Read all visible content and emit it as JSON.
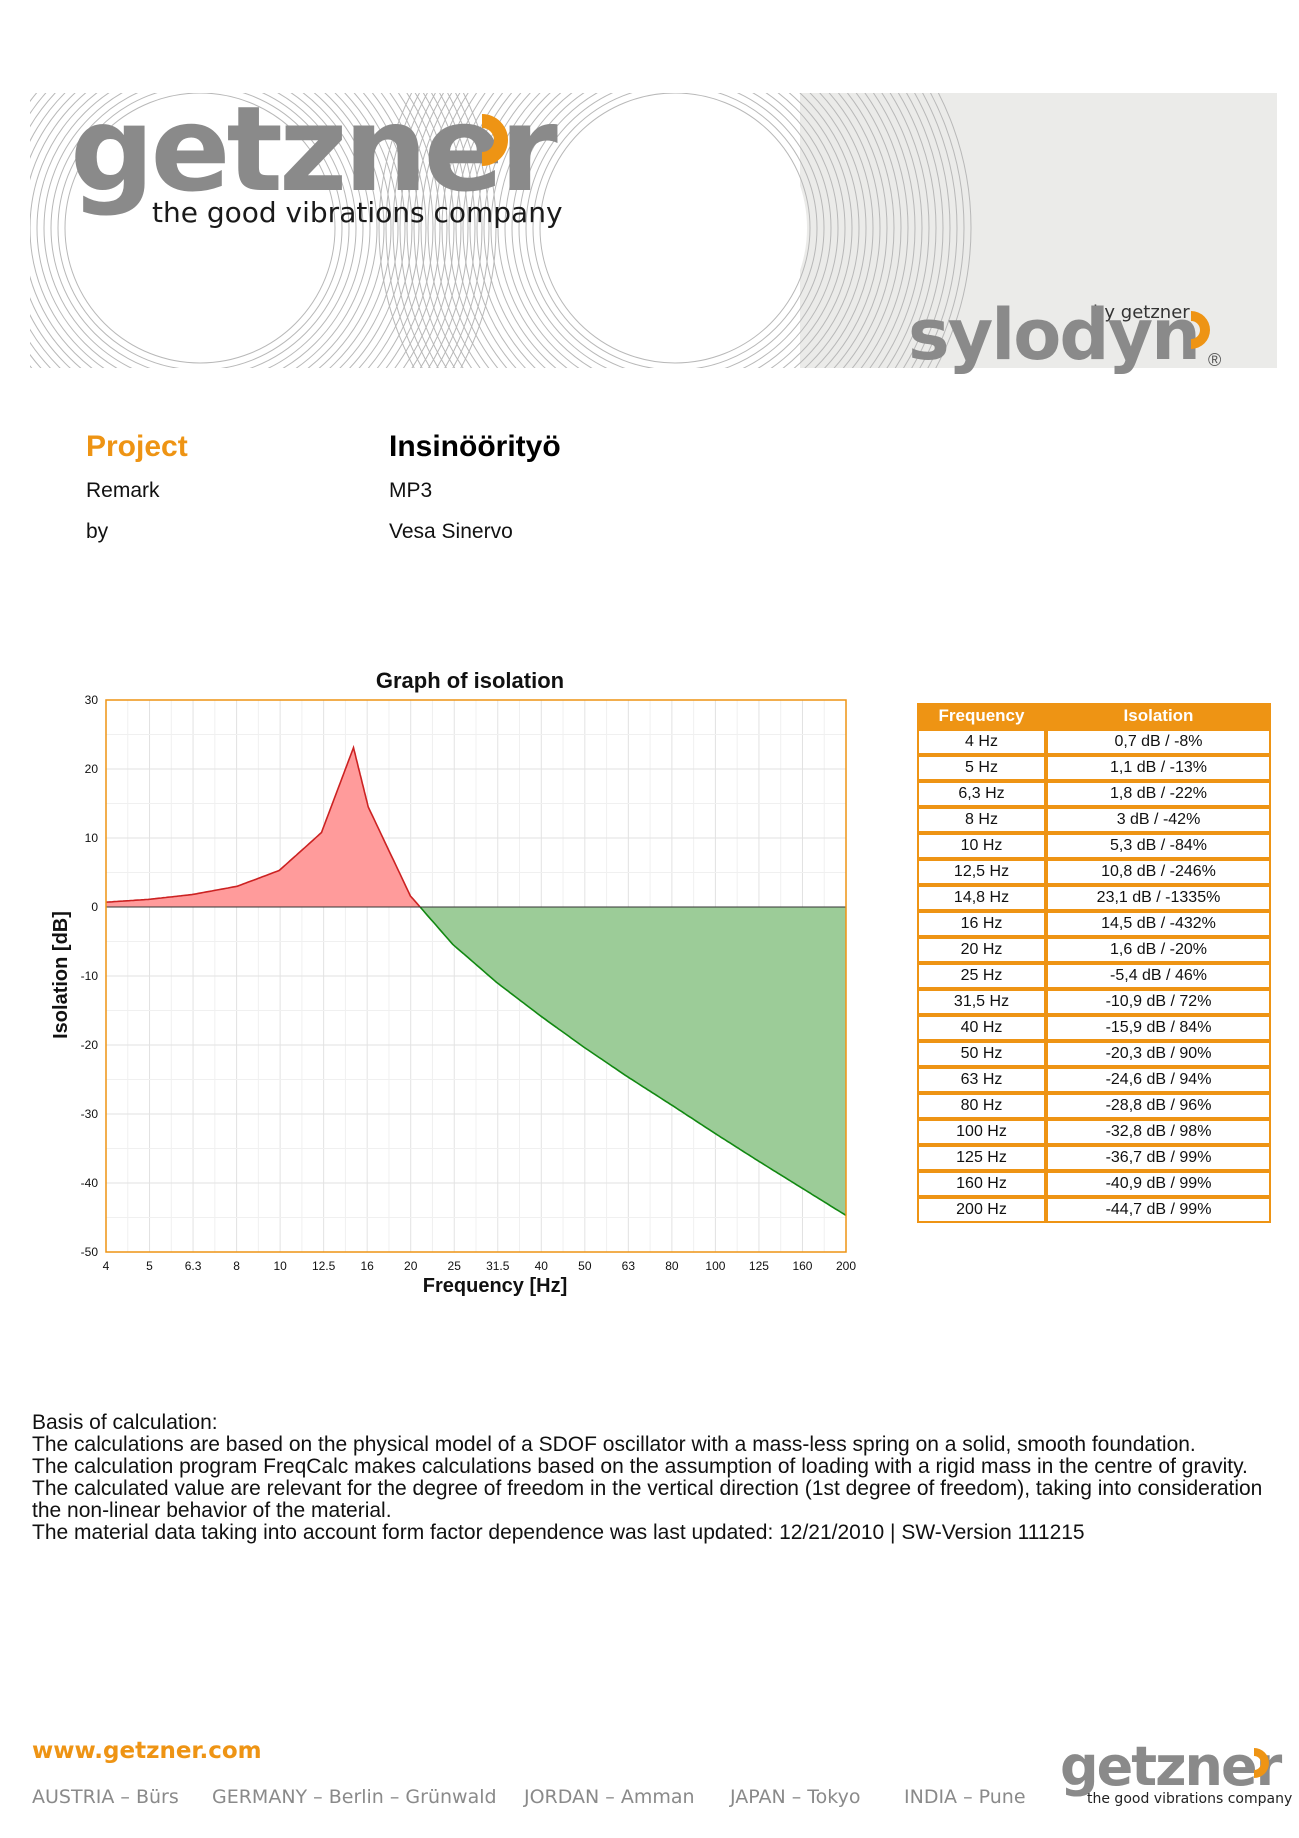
{
  "brand": {
    "logo_text": "getzner",
    "tagline": "the good vibrations company",
    "product_by": "by getzner",
    "product_name": "sylodyn",
    "registered_mark": "®",
    "accent_color": "#ee9414",
    "gray_color": "#8a8a8a"
  },
  "project": {
    "project_label": "Project",
    "project_value": "Insinöörityö",
    "remark_label": "Remark",
    "remark_value": "MP3",
    "by_label": "by",
    "by_value": "Vesa Sinervo"
  },
  "chart_data": {
    "type": "area",
    "title": "Graph of isolation",
    "xlabel": "Frequency [Hz]",
    "ylabel": "Isolation [dB]",
    "x_tick_labels": [
      "4",
      "5",
      "6.3",
      "8",
      "10",
      "12.5",
      "16",
      "20",
      "25",
      "31.5",
      "40",
      "50",
      "63",
      "80",
      "100",
      "125",
      "160",
      "200"
    ],
    "y_tick_labels": [
      "30",
      "20",
      "10",
      "0",
      "-10",
      "-20",
      "-30",
      "-40",
      "-50"
    ],
    "ylim": [
      -50,
      30
    ],
    "x": [
      4,
      5,
      6.3,
      8,
      10,
      12.5,
      14.8,
      16,
      20,
      25,
      31.5,
      40,
      50,
      63,
      80,
      100,
      125,
      160,
      200
    ],
    "y": [
      0.7,
      1.1,
      1.8,
      3,
      5.3,
      10.8,
      23.1,
      14.5,
      1.6,
      -5.4,
      -10.9,
      -15.9,
      -20.3,
      -24.6,
      -28.8,
      -32.8,
      -36.7,
      -40.9,
      -44.7
    ],
    "positive_fill": "#ff9b9b",
    "positive_line": "#cc2222",
    "negative_fill": "#9ccc98",
    "negative_line": "#118811",
    "frame_color": "#ee9414",
    "grid": true
  },
  "table": {
    "headers": [
      "Frequency",
      "Isolation"
    ],
    "rows": [
      [
        "4 Hz",
        "0,7 dB / -8%"
      ],
      [
        "5 Hz",
        "1,1 dB / -13%"
      ],
      [
        "6,3 Hz",
        "1,8 dB / -22%"
      ],
      [
        "8 Hz",
        "3 dB / -42%"
      ],
      [
        "10 Hz",
        "5,3 dB / -84%"
      ],
      [
        "12,5 Hz",
        "10,8 dB / -246%"
      ],
      [
        "14,8 Hz",
        "23,1 dB / -1335%"
      ],
      [
        "16 Hz",
        "14,5 dB / -432%"
      ],
      [
        "20 Hz",
        "1,6 dB / -20%"
      ],
      [
        "25 Hz",
        "-5,4 dB / 46%"
      ],
      [
        "31,5 Hz",
        "-10,9 dB / 72%"
      ],
      [
        "40 Hz",
        "-15,9 dB / 84%"
      ],
      [
        "50 Hz",
        "-20,3 dB / 90%"
      ],
      [
        "63 Hz",
        "-24,6 dB / 94%"
      ],
      [
        "80 Hz",
        "-28,8 dB / 96%"
      ],
      [
        "100 Hz",
        "-32,8 dB / 98%"
      ],
      [
        "125 Hz",
        "-36,7 dB / 99%"
      ],
      [
        "160 Hz",
        "-40,9 dB / 99%"
      ],
      [
        "200 Hz",
        "-44,7 dB / 99%"
      ]
    ]
  },
  "basis": {
    "heading": "Basis of calculation:",
    "line1": "The calculations are based on the physical model of a SDOF oscillator with a mass-less spring on a solid, smooth foundation.",
    "line2": "The calculation program FreqCalc makes calculations based on the assumption of loading with a rigid mass in the centre of gravity. The calculated value are relevant for the degree of freedom in the vertical direction (1st degree of freedom), taking into consideration the non-linear behavior of the material.",
    "line3": "The material data taking into account form factor dependence was last updated: 12/21/2010 | SW-Version 111215"
  },
  "footer": {
    "url": "www.getzner.com",
    "locations": [
      "AUSTRIA – Bürs",
      "GERMANY – Berlin – Grünwald",
      "JORDAN – Amman",
      "JAPAN – Tokyo",
      "INDIA – Pune"
    ],
    "logo_text": "getzner",
    "tagline": "the good vibrations company"
  }
}
